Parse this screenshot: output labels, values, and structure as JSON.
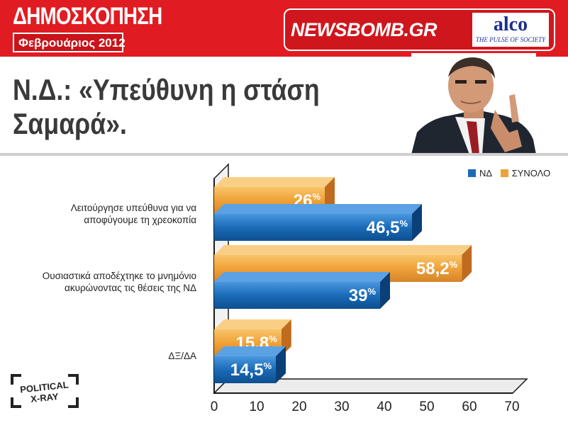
{
  "header": {
    "title": "ΔΗΜΟΣΚΟΠΗΣΗ",
    "date": "Φεβρουάριος 2012",
    "brand": "NEWSBOMB.GR",
    "pollster": "alco",
    "pollster_tagline": "THE PULSE OF SOCIETY"
  },
  "headline": "Ν.Δ.: «Υπεύθυνη η στάση\nΣαμαρά».",
  "badge": {
    "line1": "POLITICAL",
    "line2": "X-RAY"
  },
  "colors": {
    "red": "#e11b22",
    "nd": "#1a6bb8",
    "total": "#f0a238"
  },
  "chart_data": {
    "type": "bar",
    "orientation": "horizontal",
    "categories": [
      "Λειτούργησε υπεύθυνα για να αποφύγουμε τη χρεοκοπία",
      "Ουσιαστικά αποδέχτηκε το μνημόνιο ακυρώνοντας τις θέσεις της ΝΔ",
      "ΔΞ/ΔΑ"
    ],
    "category_lines": [
      [
        "Λειτούργησε υπεύθυνα για να",
        "αποφύγουμε τη χρεοκοπία"
      ],
      [
        "Ουσιαστικά αποδέχτηκε το μνημόνιο",
        "ακυρώνοντας τις θέσεις της ΝΔ"
      ],
      [
        "ΔΞ/ΔΑ"
      ]
    ],
    "series": [
      {
        "name": "ΣΥΝΟΛΟ",
        "values": [
          26,
          58.2,
          15.8
        ],
        "labels": [
          "26",
          "58,2",
          "15,8"
        ]
      },
      {
        "name": "ΝΔ",
        "values": [
          46.5,
          39,
          14.5
        ],
        "labels": [
          "46,5",
          "39",
          "14,5"
        ]
      }
    ],
    "legend": [
      "ΝΔ",
      "ΣΥΝΟΛΟ"
    ],
    "value_suffix": "%",
    "x_ticks": [
      "0",
      "10",
      "20",
      "30",
      "40",
      "50",
      "60",
      "70"
    ],
    "xlim": [
      0,
      70
    ],
    "legend_position": "top-right",
    "grid": false
  }
}
